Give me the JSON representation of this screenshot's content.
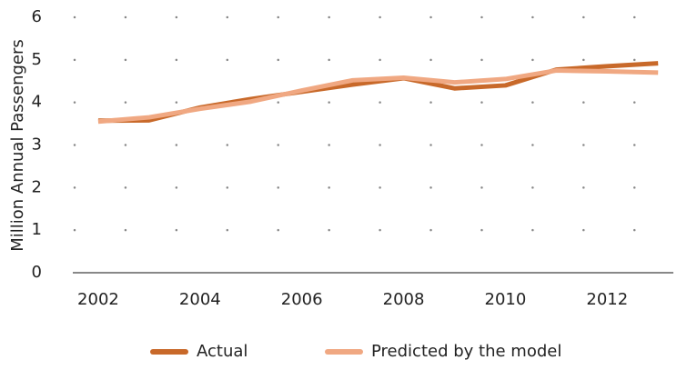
{
  "chart_data": {
    "type": "line",
    "ylabel": "Million Annual Passengers",
    "x": [
      2002,
      2003,
      2004,
      2005,
      2006,
      2007,
      2008,
      2009,
      2010,
      2011,
      2012,
      2013
    ],
    "series": [
      {
        "name": "Actual",
        "color": "#c8692a",
        "values": [
          3.57,
          3.58,
          3.88,
          4.08,
          4.25,
          4.42,
          4.57,
          4.33,
          4.4,
          4.77,
          4.85,
          4.92
        ]
      },
      {
        "name": "Predicted by the model",
        "color": "#f0a882",
        "values": [
          3.55,
          3.65,
          3.85,
          4.02,
          4.28,
          4.52,
          4.58,
          4.47,
          4.55,
          4.75,
          4.73,
          4.7
        ]
      }
    ],
    "xlim": [
      2001.5,
      2013.3
    ],
    "xticks": [
      2002,
      2004,
      2006,
      2008,
      2010,
      2012
    ],
    "ylim": [
      0,
      6
    ],
    "yticks": [
      0,
      1,
      2,
      3,
      4,
      5,
      6
    ],
    "grid": true,
    "legend": "bottom"
  }
}
